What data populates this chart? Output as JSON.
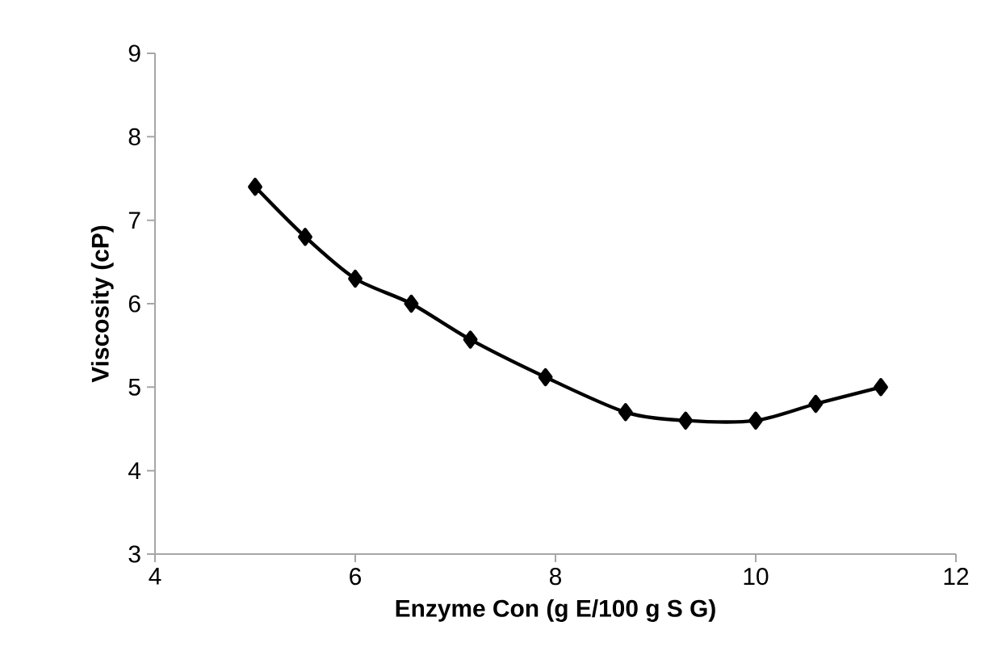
{
  "chart_data": {
    "type": "line",
    "xlabel": "Enzyme Con (g E/100 g S G)",
    "ylabel": "Viscosity (cP)",
    "x": [
      5,
      5.5,
      6,
      6.56,
      7.15,
      7.9,
      8.7,
      9.3,
      10,
      10.6,
      11.25
    ],
    "values": [
      7.4,
      6.8,
      6.3,
      6.0,
      5.57,
      5.12,
      4.7,
      4.6,
      4.6,
      4.8,
      5.0
    ],
    "color": "#000000",
    "marker": "diamond",
    "line_style": "solid",
    "xlim": [
      4,
      12
    ],
    "xticks": [
      4,
      6,
      8,
      10,
      12
    ],
    "ylim": [
      3,
      9
    ],
    "yticks": [
      3,
      4,
      5,
      6,
      7,
      8,
      9
    ],
    "grid": false
  }
}
